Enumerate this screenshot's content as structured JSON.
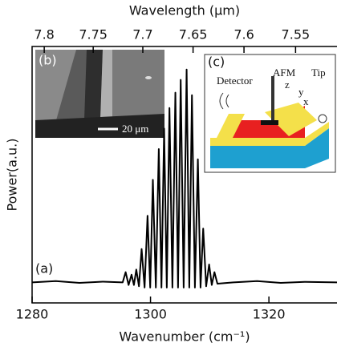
{
  "chart_data": {
    "type": "line",
    "x_label": "Wavenumber (cm⁻¹)",
    "x2_label": "Wavelength (μm)",
    "y_label": "Power(a.u.)",
    "annotations": [
      "(a)",
      "(b)",
      "20 μm",
      "(c)",
      "Detector",
      "AFM",
      "Tip",
      "z",
      "y",
      "x"
    ],
    "xlim": [
      1280,
      1331.5
    ],
    "xticks": [
      1280,
      1300,
      1320
    ],
    "x2ticks": [
      7.8,
      7.75,
      7.7,
      7.65,
      7.6,
      7.55
    ],
    "ylim": [
      0,
      1
    ],
    "x": [
      1280,
      1284,
      1288,
      1292,
      1295.3,
      1295.8,
      1296.3,
      1296.8,
      1297.2,
      1297.6,
      1298.05,
      1298.5,
      1299.0,
      1299.5,
      1299.95,
      1300.4,
      1300.9,
      1301.4,
      1301.85,
      1302.3,
      1302.75,
      1303.2,
      1303.7,
      1304.2,
      1304.65,
      1305.1,
      1305.6,
      1306.1,
      1306.55,
      1307.0,
      1307.5,
      1308.0,
      1308.45,
      1308.9,
      1309.4,
      1309.9,
      1310.35,
      1310.8,
      1311.3,
      1314,
      1318,
      1322,
      1326,
      1331.5
    ],
    "series": [
      {
        "color": "#000000",
        "values": [
          0.08,
          0.085,
          0.078,
          0.083,
          0.08,
          0.12,
          0.07,
          0.11,
          0.07,
          0.13,
          0.065,
          0.21,
          0.06,
          0.34,
          0.06,
          0.48,
          0.06,
          0.6,
          0.06,
          0.68,
          0.06,
          0.76,
          0.06,
          0.82,
          0.06,
          0.87,
          0.06,
          0.91,
          0.06,
          0.81,
          0.06,
          0.56,
          0.06,
          0.29,
          0.065,
          0.15,
          0.07,
          0.12,
          0.075,
          0.08,
          0.085,
          0.078,
          0.082,
          0.08
        ]
      }
    ]
  }
}
